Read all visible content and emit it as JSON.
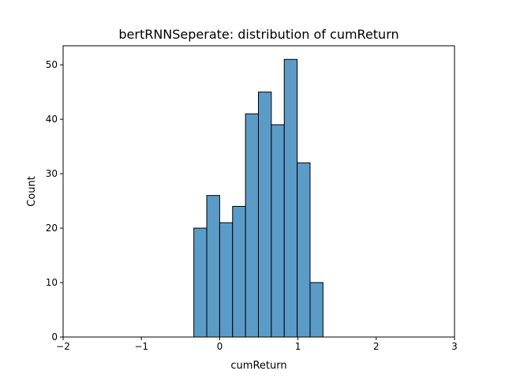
{
  "chart_data": {
    "type": "bar",
    "title": "bertRNNSeperate: distribution of cumReturn",
    "xlabel": "cumReturn",
    "ylabel": "Count",
    "xlim": [
      -2,
      3
    ],
    "ylim": [
      0,
      53.5
    ],
    "x_ticks": [
      -2,
      -1,
      0,
      1,
      2,
      3
    ],
    "x_tick_labels": [
      "−2",
      "−1",
      "0",
      "1",
      "2",
      "3"
    ],
    "y_ticks": [
      0,
      10,
      20,
      30,
      40,
      50
    ],
    "y_tick_labels": [
      "0",
      "10",
      "20",
      "30",
      "40",
      "50"
    ],
    "grid": false,
    "legend": false,
    "bin_edges": [
      -0.33,
      -0.165,
      0.0,
      0.165,
      0.33,
      0.495,
      0.66,
      0.825,
      0.99,
      1.155,
      1.32
    ],
    "values": [
      20,
      26,
      21,
      24,
      41,
      45,
      39,
      51,
      32,
      10
    ],
    "colors": {
      "bar_fill": "#5b9bc8",
      "bar_edge": "#000000",
      "axes": "#000000"
    }
  }
}
